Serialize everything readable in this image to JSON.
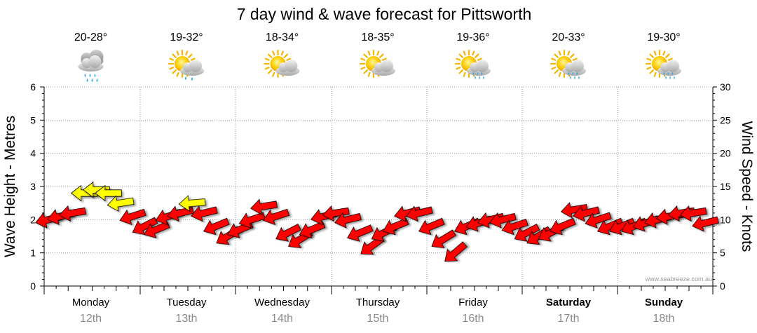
{
  "chart_data": {
    "type": "line",
    "title": "7 day wind & wave forecast for Pittsworth",
    "ylabel_left": "Wave Height - Metres",
    "ylabel_right": "Wind Speed - Knots",
    "ylim_left": [
      0,
      6
    ],
    "ylim_right": [
      0,
      30
    ],
    "yticks_left": [
      "0",
      "1",
      "2",
      "3",
      "4",
      "5",
      "6"
    ],
    "yticks_right": [
      "0",
      "5",
      "10",
      "15",
      "20",
      "25",
      "30"
    ],
    "grid": true,
    "watermark": "www.seabreeze.com.au",
    "days": [
      {
        "name": "Monday",
        "date": "12th",
        "temp": "20-28°",
        "icon": "rain-cloud-icon",
        "bold": false
      },
      {
        "name": "Tuesday",
        "date": "13th",
        "temp": "19-32°",
        "icon": "sun-cloud-shower-icon",
        "bold": false
      },
      {
        "name": "Wednesday",
        "date": "14th",
        "temp": "18-34°",
        "icon": "sun-cloud-icon",
        "bold": false
      },
      {
        "name": "Thursday",
        "date": "15th",
        "temp": "18-35°",
        "icon": "sun-cloud-icon",
        "bold": false
      },
      {
        "name": "Friday",
        "date": "16th",
        "temp": "19-36°",
        "icon": "sun-cloud-rain-icon",
        "bold": false
      },
      {
        "name": "Saturday",
        "date": "17th",
        "temp": "20-33°",
        "icon": "sun-cloud-rain-icon",
        "bold": true
      },
      {
        "name": "Sunday",
        "date": "18th",
        "temp": "19-30°",
        "icon": "sun-cloud-rain-icon",
        "bold": true
      }
    ],
    "colors": {
      "red": "#ff0000",
      "yellow": "#ffff00",
      "grid": "#999999"
    },
    "series": [
      {
        "name": "Wind Speed - Knots",
        "x_hours": [
          0,
          3,
          6,
          9,
          12,
          15,
          18,
          21,
          24,
          27,
          30,
          33,
          36,
          39,
          42,
          45,
          48,
          51,
          54,
          57,
          60,
          63,
          66,
          69,
          72,
          75,
          78,
          81,
          84,
          87,
          90,
          93,
          96,
          99,
          102,
          105,
          108,
          111,
          114,
          117,
          120,
          123,
          126,
          129,
          132,
          135,
          138,
          141,
          144,
          147,
          150,
          153,
          156,
          159,
          162,
          165
        ],
        "values": [
          10,
          10.5,
          11,
          14,
          14.5,
          14,
          12.5,
          10.5,
          9,
          8.5,
          10.5,
          11,
          12.5,
          11,
          9,
          7.5,
          8.5,
          10,
          12,
          10.5,
          8,
          7,
          8.5,
          10.5,
          11,
          10,
          8,
          6,
          8,
          9,
          11,
          11,
          9,
          7,
          5,
          9,
          9.5,
          10,
          10,
          9,
          8,
          7.5,
          8,
          9,
          11.5,
          11,
          10,
          9,
          9,
          9,
          9.5,
          10,
          10.5,
          11,
          11,
          9.5
        ],
        "direction_deg": [
          120,
          120,
          110,
          90,
          90,
          90,
          110,
          130,
          150,
          140,
          130,
          120,
          100,
          120,
          140,
          160,
          140,
          130,
          110,
          130,
          150,
          160,
          140,
          120,
          110,
          120,
          140,
          170,
          150,
          140,
          120,
          120,
          140,
          160,
          180,
          140,
          130,
          120,
          120,
          130,
          150,
          160,
          150,
          140,
          110,
          120,
          130,
          140,
          140,
          140,
          130,
          120,
          110,
          110,
          110,
          120
        ]
      }
    ]
  }
}
